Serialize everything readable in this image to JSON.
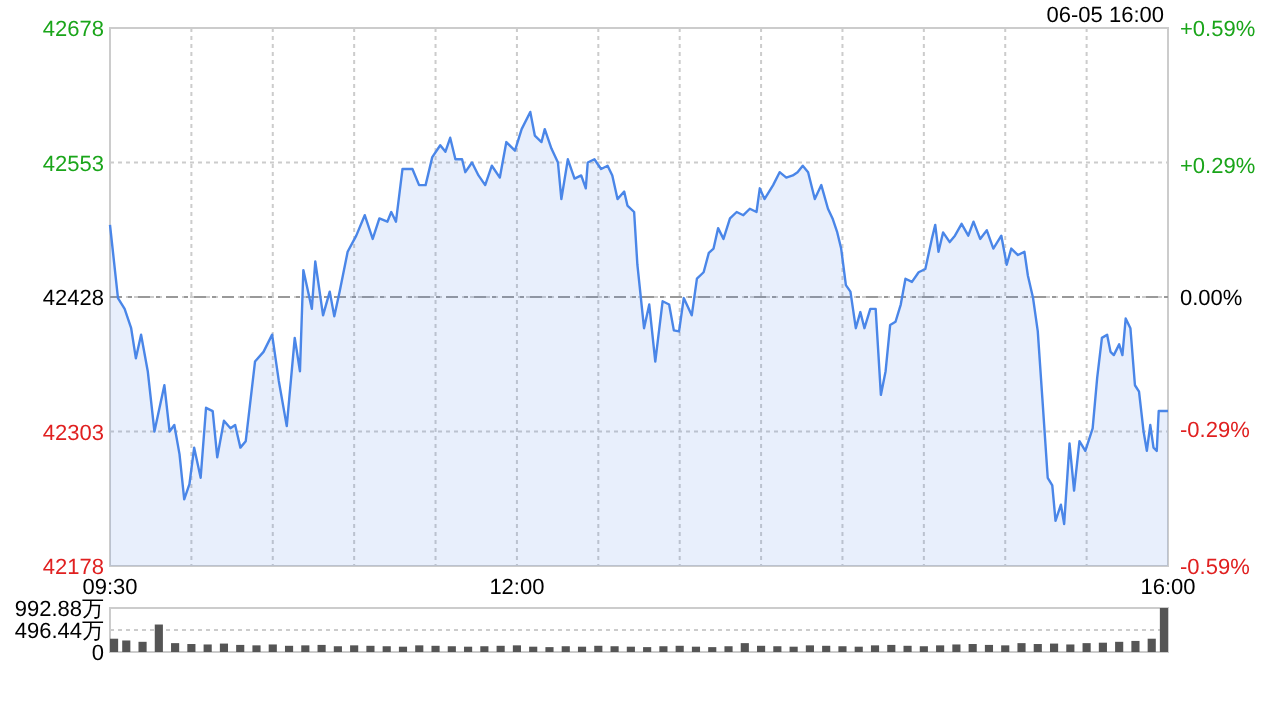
{
  "chart_data": [
    {
      "type": "area",
      "color": "#4a86e8",
      "annotations": [
        "06-05 16:00"
      ],
      "x": [
        9.5,
        9.549,
        9.59,
        9.63,
        9.659,
        9.691,
        9.732,
        9.773,
        9.834,
        9.866,
        9.895,
        9.927,
        9.956,
        9.988,
        10.017,
        10.057,
        10.09,
        10.131,
        10.159,
        10.2,
        10.24,
        10.269,
        10.301,
        10.334,
        10.391,
        10.443,
        10.496,
        10.537,
        10.586,
        10.635,
        10.667,
        10.688,
        10.74,
        10.761,
        10.809,
        10.85,
        10.878,
        10.911,
        10.96,
        11.013,
        11.065,
        11.114,
        11.155,
        11.204,
        11.228,
        11.257,
        11.297,
        11.358,
        11.399,
        11.439,
        11.48,
        11.529,
        11.561,
        11.59,
        11.622,
        11.663,
        11.683,
        11.724,
        11.764,
        11.805,
        11.846,
        11.895,
        11.935,
        11.988,
        12.029,
        12.082,
        12.11,
        12.151,
        12.171,
        12.212,
        12.252,
        12.273,
        12.313,
        12.354,
        12.395,
        12.423,
        12.435,
        12.476,
        12.517,
        12.557,
        12.586,
        12.618,
        12.659,
        12.679,
        12.72,
        12.74,
        12.781,
        12.813,
        12.85,
        12.895,
        12.935,
        12.964,
        12.996,
        13.025,
        13.074,
        13.106,
        13.147,
        13.179,
        13.208,
        13.236,
        13.269,
        13.309,
        13.35,
        13.391,
        13.431,
        13.472,
        13.492,
        13.521,
        13.574,
        13.614,
        13.655,
        13.695,
        13.724,
        13.756,
        13.789,
        13.83,
        13.87,
        13.911,
        13.939,
        13.968,
        13.992,
        14.021,
        14.049,
        14.082,
        14.11,
        14.135,
        14.171,
        14.204,
        14.236,
        14.265,
        14.293,
        14.326,
        14.358,
        14.387,
        14.427,
        14.468,
        14.509,
        14.549,
        14.57,
        14.59,
        14.618,
        14.659,
        14.691,
        14.732,
        14.773,
        14.805,
        14.846,
        14.887,
        14.927,
        14.976,
        15.009,
        15.037,
        15.078,
        15.118,
        15.139,
        15.171,
        15.2,
        15.228,
        15.261,
        15.289,
        15.309,
        15.342,
        15.362,
        15.395,
        15.423,
        15.456,
        15.492,
        15.537,
        15.565,
        15.594,
        15.626,
        15.647,
        15.667,
        15.7,
        15.72,
        15.74,
        15.769,
        15.797,
        15.822,
        15.85,
        15.87,
        15.891,
        15.911,
        15.931,
        15.943,
        16.0
      ],
      "values": [
        42495,
        42427,
        42417,
        42399,
        42371,
        42393,
        42359,
        42303,
        42346,
        42303,
        42309,
        42282,
        42240,
        42254,
        42288,
        42260,
        42325,
        42322,
        42279,
        42313,
        42306,
        42309,
        42288,
        42294,
        42368,
        42377,
        42393,
        42350,
        42308,
        42390,
        42359,
        42453,
        42417,
        42461,
        42411,
        42433,
        42410,
        42433,
        42470,
        42485,
        42504,
        42482,
        42501,
        42498,
        42507,
        42498,
        42547,
        42547,
        42532,
        42532,
        42558,
        42569,
        42563,
        42576,
        42556,
        42556,
        42544,
        42553,
        42541,
        42532,
        42550,
        42539,
        42572,
        42564,
        42584,
        42600,
        42578,
        42572,
        42584,
        42566,
        42553,
        42519,
        42556,
        42538,
        42541,
        42529,
        42553,
        42556,
        42547,
        42550,
        42541,
        42519,
        42526,
        42513,
        42507,
        42458,
        42399,
        42421,
        42368,
        42424,
        42421,
        42397,
        42396,
        42427,
        42411,
        42445,
        42451,
        42469,
        42473,
        42492,
        42482,
        42501,
        42507,
        42504,
        42510,
        42507,
        42529,
        42519,
        42532,
        42544,
        42539,
        42541,
        42544,
        42550,
        42544,
        42519,
        42532,
        42510,
        42501,
        42488,
        42473,
        42439,
        42433,
        42399,
        42414,
        42399,
        42417,
        42417,
        42337,
        42359,
        42402,
        42405,
        42421,
        42445,
        42442,
        42451,
        42454,
        42482,
        42495,
        42470,
        42488,
        42479,
        42485,
        42496,
        42485,
        42498,
        42482,
        42490,
        42473,
        42485,
        42458,
        42473,
        42467,
        42470,
        42448,
        42427,
        42396,
        42334,
        42260,
        42253,
        42220,
        42235,
        42217,
        42292,
        42248,
        42294,
        42285,
        42306,
        42353,
        42390,
        42393,
        42377,
        42374,
        42384,
        42374,
        42408,
        42399,
        42346,
        42340,
        42303,
        42285,
        42309,
        42288,
        42285,
        42322,
        42322
      ],
      "xlim": [
        9.5,
        16
      ],
      "xticks": [
        {
          "value": 9.5,
          "label": "09:30"
        },
        {
          "value": 10,
          "label": null
        },
        {
          "value": 10.5,
          "label": null
        },
        {
          "value": 11,
          "label": null
        },
        {
          "value": 11.5,
          "label": null
        },
        {
          "value": 12,
          "label": "12:00"
        },
        {
          "value": 12.5,
          "label": null
        },
        {
          "value": 13,
          "label": null
        },
        {
          "value": 13.5,
          "label": null
        },
        {
          "value": 14,
          "label": null
        },
        {
          "value": 14.5,
          "label": null
        },
        {
          "value": 15,
          "label": null
        },
        {
          "value": 15.5,
          "label": null
        },
        {
          "value": 16,
          "label": "16:00"
        }
      ],
      "ylim": [
        42178,
        42678
      ],
      "yticks": [
        42178,
        42303,
        42428,
        42553,
        42678
      ],
      "y2lim": [
        -0.59,
        0.59
      ],
      "y2ticks": [
        {
          "value": -0.59,
          "label": "-0.59%"
        },
        {
          "value": -0.29,
          "label": "-0.29%"
        },
        {
          "value": 0,
          "label": "0.00%"
        },
        {
          "value": 0.29,
          "label": "+0.29%"
        },
        {
          "value": 0.59,
          "label": "+0.59%"
        }
      ],
      "ref_lines": [
        {
          "axis": "y",
          "value": 42428,
          "line_style": "dashed"
        }
      ],
      "grid": true
    },
    {
      "type": "bar",
      "color": "#555555",
      "tick_labels": "y",
      "grid": "y",
      "x": [
        9.5,
        9.6,
        9.7,
        9.8,
        9.9,
        10.0,
        10.1,
        10.2,
        10.3,
        10.4,
        10.5,
        10.6,
        10.7,
        10.8,
        10.9,
        11.0,
        11.1,
        11.2,
        11.3,
        11.4,
        11.5,
        11.6,
        11.7,
        11.8,
        11.9,
        12.0,
        12.1,
        12.2,
        12.3,
        12.4,
        12.5,
        12.6,
        12.7,
        12.8,
        12.9,
        13.0,
        13.1,
        13.2,
        13.3,
        13.4,
        13.5,
        13.6,
        13.7,
        13.8,
        13.9,
        14.0,
        14.1,
        14.2,
        14.3,
        14.4,
        14.5,
        14.6,
        14.7,
        14.8,
        14.9,
        15.0,
        15.1,
        15.2,
        15.3,
        15.4,
        15.5,
        15.6,
        15.7,
        15.8,
        15.9,
        16.0
      ],
      "values": [
        300,
        260,
        230,
        620,
        200,
        180,
        170,
        190,
        160,
        150,
        170,
        140,
        150,
        160,
        130,
        150,
        140,
        130,
        120,
        150,
        140,
        130,
        120,
        130,
        140,
        150,
        120,
        110,
        130,
        120,
        140,
        130,
        120,
        110,
        130,
        140,
        120,
        110,
        130,
        200,
        140,
        130,
        120,
        150,
        140,
        130,
        120,
        150,
        160,
        140,
        130,
        150,
        170,
        180,
        160,
        150,
        200,
        180,
        190,
        170,
        200,
        210,
        230,
        250,
        300,
        992.88
      ],
      "xlim": [
        9.5,
        16
      ],
      "ylim": [
        0,
        992.88
      ],
      "yticks": [
        0,
        {
          "value": 496.44,
          "label": "496.44万"
        },
        {
          "value": 992.88,
          "label": "992.88万"
        }
      ]
    }
  ]
}
